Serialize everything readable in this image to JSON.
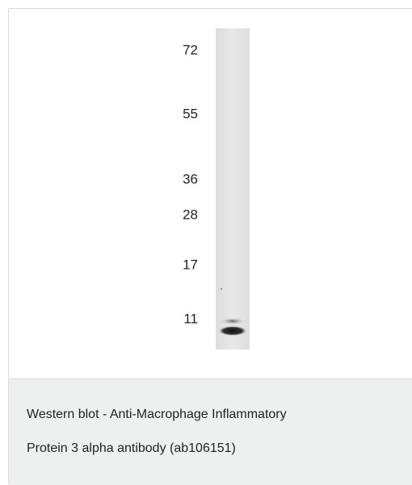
{
  "markers": [
    "72",
    "55",
    "36",
    "28",
    "17",
    "11"
  ],
  "caption": [
    "Western blot - Anti-Macrophage Inflammatory",
    "Protein 3 alpha antibody (ab106151)"
  ]
}
